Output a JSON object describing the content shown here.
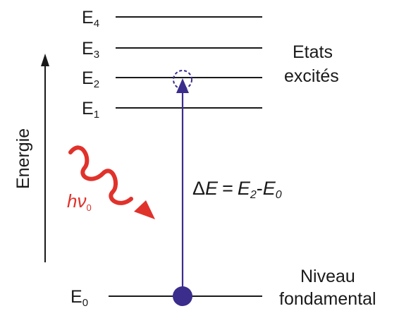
{
  "axis": {
    "label": "Energie"
  },
  "levels": [
    {
      "key": "E4",
      "base": "E",
      "sub": "4"
    },
    {
      "key": "E3",
      "base": "E",
      "sub": "3"
    },
    {
      "key": "E2",
      "base": "E",
      "sub": "2"
    },
    {
      "key": "E1",
      "base": "E",
      "sub": "1"
    },
    {
      "key": "E0",
      "base": "E",
      "sub": "0"
    }
  ],
  "excited_states": {
    "line1": "Etats",
    "line2": "excités"
  },
  "ground_state": {
    "line1": "Niveau",
    "line2": "fondamental"
  },
  "photon": {
    "symbol": "hν",
    "sub": "0"
  },
  "transition": {
    "delta": "Δ",
    "lhs": "E",
    "equals": "=",
    "term1": "E",
    "term1_sub": "2",
    "minus": "-",
    "term2": "E",
    "term2_sub": "0"
  },
  "colors": {
    "level_line": "#1a1a1a",
    "transition": "#3b2d8c",
    "photon": "#e0322b"
  }
}
